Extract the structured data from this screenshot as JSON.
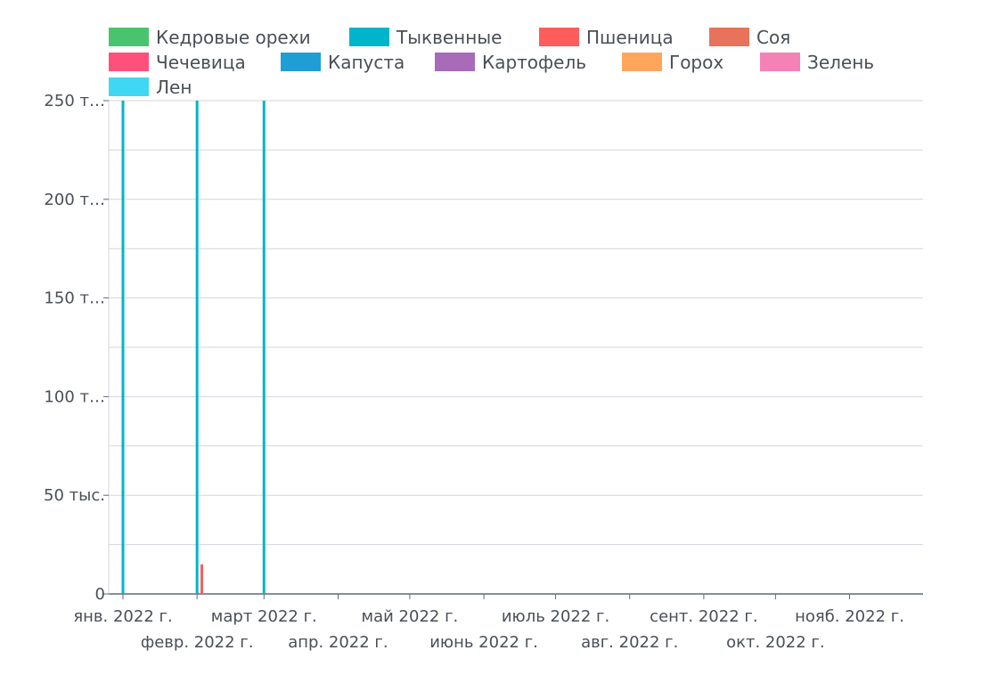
{
  "chart_data": {
    "type": "bar",
    "title": "",
    "xlabel": "",
    "ylabel": "",
    "legend_position": "top-left",
    "grid": true,
    "ylim": [
      0,
      250000
    ],
    "xlim": [
      "2022-01-01",
      "2022-12-01"
    ],
    "y_ticks": [
      0,
      50000,
      100000,
      150000,
      200000,
      250000
    ],
    "y_tick_labels": [
      "0",
      "50 тыс.",
      "100 т…",
      "150 т…",
      "200 т…",
      "250 т…"
    ],
    "x_ticks": [
      {
        "date": "2022-01-01",
        "label": "янв. 2022 г."
      },
      {
        "date": "2022-02-01",
        "label": "февр. 2022 г."
      },
      {
        "date": "2022-03-01",
        "label": "март 2022 г."
      },
      {
        "date": "2022-04-01",
        "label": "апр. 2022 г."
      },
      {
        "date": "2022-05-01",
        "label": "май 2022 г."
      },
      {
        "date": "2022-06-01",
        "label": "июнь 2022 г."
      },
      {
        "date": "2022-07-01",
        "label": "июль 2022 г."
      },
      {
        "date": "2022-08-01",
        "label": "авг. 2022 г."
      },
      {
        "date": "2022-09-01",
        "label": "сент. 2022 г."
      },
      {
        "date": "2022-10-01",
        "label": "окт. 2022 г."
      },
      {
        "date": "2022-11-01",
        "label": "нояб. 2022 г."
      }
    ],
    "series": [
      {
        "name": "Кедровые орехи",
        "color": "#4ac36f",
        "points": []
      },
      {
        "name": "Тыквенные",
        "color": "#00b5c9",
        "points": [
          {
            "x": "2022-01-01",
            "y": 250000
          },
          {
            "x": "2022-02-01",
            "y": 250000
          },
          {
            "x": "2022-03-01",
            "y": 250000
          }
        ]
      },
      {
        "name": "Пшеница",
        "color": "#ff5c5c",
        "points": [
          {
            "x": "2022-02-03",
            "y": 15000
          }
        ]
      },
      {
        "name": "Соя",
        "color": "#e8735a",
        "points": []
      },
      {
        "name": "Чечевица",
        "color": "#ff4f7b",
        "points": []
      },
      {
        "name": "Капуста",
        "color": "#1f9ed6",
        "points": []
      },
      {
        "name": "Картофель",
        "color": "#a86bb7",
        "points": []
      },
      {
        "name": "Горох",
        "color": "#ffa65c",
        "points": []
      },
      {
        "name": "Зелень",
        "color": "#f582b6",
        "points": []
      },
      {
        "name": "Лен",
        "color": "#3fd7f3",
        "points": []
      }
    ]
  }
}
